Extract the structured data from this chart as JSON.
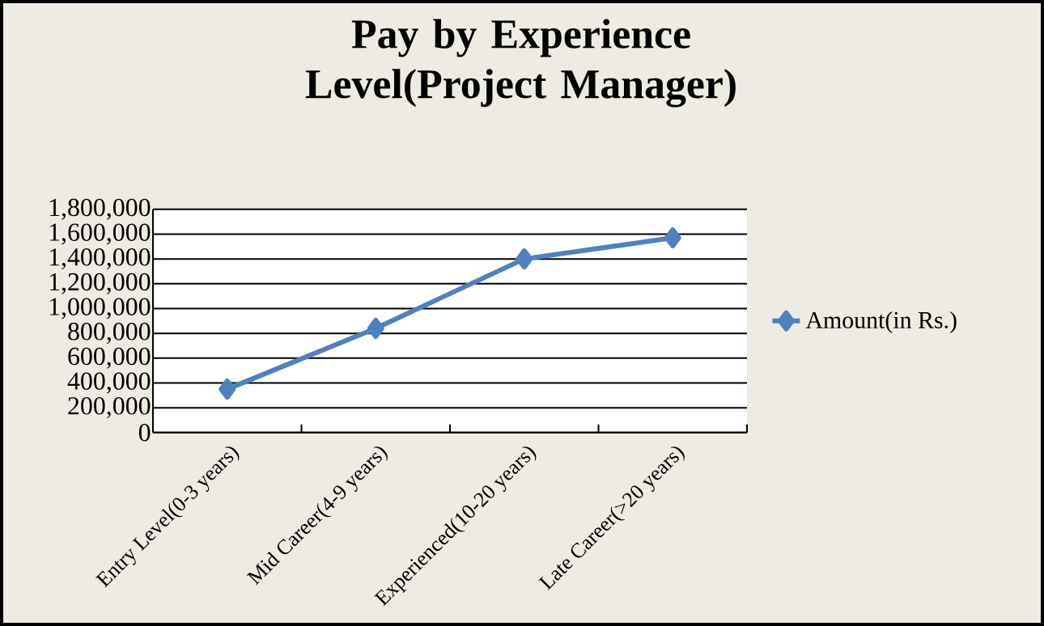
{
  "chart_data": {
    "type": "line",
    "title": "Pay by Experience Level(Project Manager)",
    "categories": [
      "Entry Level(0-3 years)",
      "Mid Career(4-9 years)",
      "Experienced(10-20 years)",
      "Late Career(>20 years)"
    ],
    "series": [
      {
        "name": "Amount(in Rs.)",
        "color": "#4f81bd",
        "values": [
          350000,
          840000,
          1400000,
          1570000
        ]
      }
    ],
    "ylim": [
      0,
      1800000
    ],
    "yticks": [
      0,
      {
        "value": 200000,
        "label": "200,000"
      },
      {
        "value": 400000,
        "label": "400,000"
      },
      {
        "value": 600000,
        "label": "600,000"
      },
      {
        "value": 800000,
        "label": "800,000"
      },
      {
        "value": 1000000,
        "label": "1,000,000"
      },
      {
        "value": 1200000,
        "label": "1,200,000"
      },
      {
        "value": 1400000,
        "label": "1,400,000"
      },
      {
        "value": 1600000,
        "label": "1,600,000"
      },
      {
        "value": 1800000,
        "label": "1,800,000"
      }
    ],
    "grid": "y",
    "legend": "right",
    "marker": "diamond",
    "line_style": "solid"
  }
}
